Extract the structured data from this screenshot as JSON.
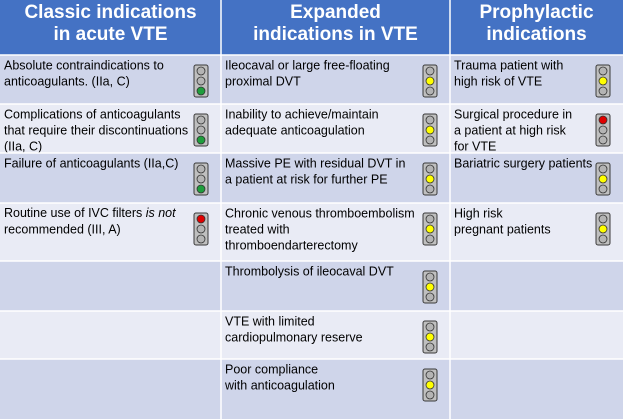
{
  "table": {
    "header": [
      [
        "Classic indications",
        "in acute VTE"
      ],
      [
        "Expanded",
        "indications in VTE"
      ],
      [
        "Prophylactic",
        "indications"
      ]
    ],
    "rows": [
      [
        {
          "lines": [
            "Absolute contraindications to",
            "anticoagulants. (IIa, C)"
          ],
          "light": "green"
        },
        {
          "lines": [
            "Ileocaval or large free-floating",
            "proximal DVT"
          ],
          "light": "yellow"
        },
        {
          "lines": [
            "Trauma patient with",
            "high risk of VTE"
          ],
          "light": "yellow"
        }
      ],
      [
        {
          "lines": [
            "Complications of anticoagulants",
            "that require their discontinuations",
            "(IIa, C)"
          ],
          "light": "green"
        },
        {
          "lines": [
            "Inability to achieve/maintain",
            "adequate anticoagulation"
          ],
          "light": "yellow"
        },
        {
          "lines": [
            "Surgical procedure in",
            "a patient at high risk",
            "for VTE"
          ],
          "light": "red"
        }
      ],
      [
        {
          "lines": [
            "Failure of anticoagulants (IIa,C)"
          ],
          "light": "green"
        },
        {
          "lines": [
            "Massive PE with residual DVT in",
            "a patient at risk for further PE"
          ],
          "light": "yellow"
        },
        {
          "lines": [
            "Bariatric surgery patients"
          ],
          "light": "yellow"
        }
      ],
      [
        {
          "lines": [
            [
              "Routine use of IVC filters ",
              "is not"
            ],
            "recommended (III, A)"
          ],
          "light": "red"
        },
        {
          "lines": [
            "Chronic venous thromboembolism",
            "treated with",
            "thromboendarterectomy"
          ],
          "light": "yellow"
        },
        {
          "lines": [
            "High risk",
            "pregnant patients"
          ],
          "light": "yellow"
        }
      ],
      [
        null,
        {
          "lines": [
            "Thrombolysis of ileocaval DVT"
          ],
          "light": "yellow"
        },
        null
      ],
      [
        null,
        {
          "lines": [
            "VTE with limited",
            "cardiopulmonary reserve"
          ],
          "light": "yellow"
        },
        null
      ],
      [
        null,
        {
          "lines": [
            "Poor compliance",
            "with anticoagulation"
          ],
          "light": "yellow"
        },
        null
      ]
    ]
  }
}
